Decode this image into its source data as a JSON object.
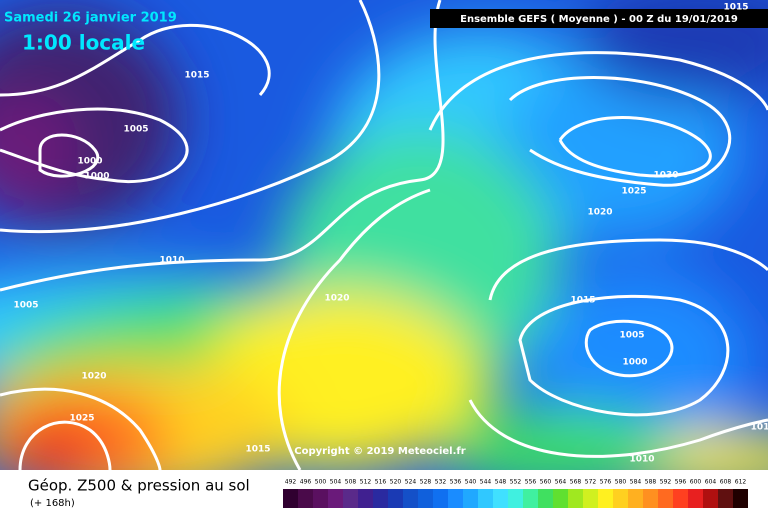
{
  "header": {
    "date": "Samedi 26 janvier 2019",
    "time": "1:00 locale",
    "run": "Ensemble GEFS  ( Moyenne )  -  00 Z du 19/01/2019"
  },
  "isobars": [
    "1015",
    "1015",
    "1005",
    "1000",
    "1000",
    "1010",
    "1005",
    "1020",
    "1020",
    "1025",
    "1015",
    "1030",
    "1025",
    "1020",
    "1015",
    "1005",
    "1000",
    "1010",
    "101"
  ],
  "copyright": "Copyright © 2019 Meteociel.fr",
  "footer": {
    "title": "Géop. Z500 & pression au sol",
    "lead": "(+ 168h)"
  },
  "scale": {
    "labels": [
      492,
      496,
      500,
      504,
      508,
      512,
      516,
      520,
      524,
      528,
      532,
      536,
      540,
      544,
      548,
      552,
      556,
      560,
      564,
      568,
      572,
      576,
      580,
      584,
      588,
      592,
      596,
      600,
      604,
      608,
      612
    ],
    "colors": [
      "#300030",
      "#4a0a4a",
      "#5a1060",
      "#6a1a7a",
      "#5a2a8a",
      "#402090",
      "#2a2aa0",
      "#1a3ab4",
      "#1450c8",
      "#1060dc",
      "#1070f0",
      "#1a8cff",
      "#20a8ff",
      "#30c8ff",
      "#40e0ff",
      "#40f0e0",
      "#40f0a0",
      "#40e060",
      "#60e030",
      "#a0e820",
      "#d0f020",
      "#fff020",
      "#ffd020",
      "#ffb020",
      "#ff9020",
      "#ff6a20",
      "#ff4020",
      "#e82020",
      "#b01010",
      "#601010",
      "#200000"
    ]
  }
}
